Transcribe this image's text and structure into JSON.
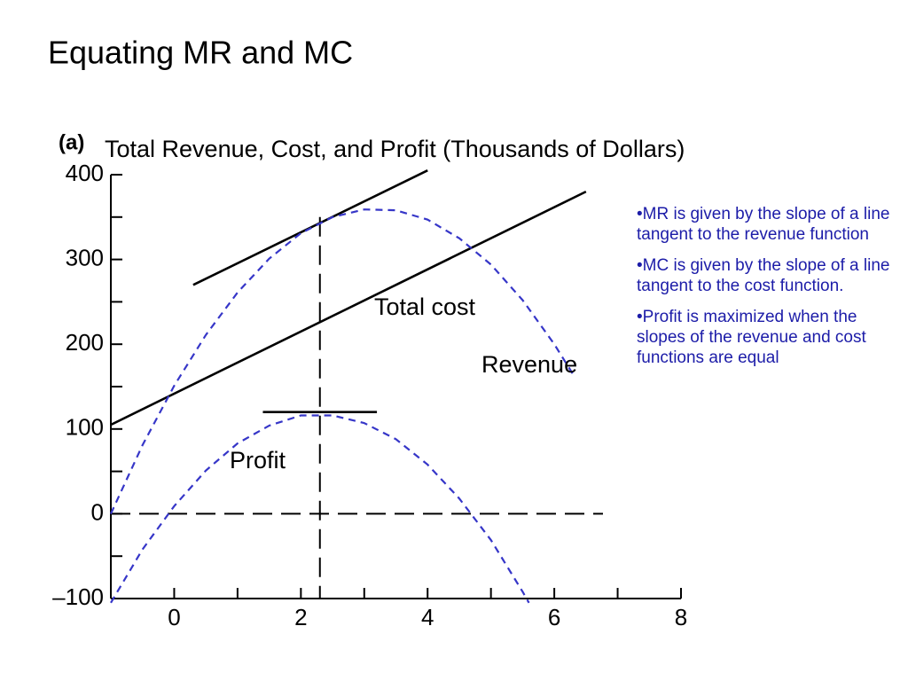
{
  "title": "Equating MR and MC",
  "bullets": [
    "•MR is given by the slope of a line tangent to the revenue function",
    "•MC is given by the slope of a line tangent to the cost function.",
    "•Profit is maximized when the slopes of the revenue and cost functions are equal"
  ],
  "chart_data": {
    "type": "line",
    "panel_label": "(a)",
    "title": "Total Revenue, Cost, and Profit (Thousands of Dollars)",
    "xlim": [
      -1,
      8
    ],
    "ylim": [
      -100,
      400
    ],
    "xticks": [
      0,
      2,
      4,
      6,
      8
    ],
    "yticks": [
      {
        "value": -100,
        "label": "–100"
      },
      0,
      100,
      200,
      300,
      400
    ],
    "vline": 2.3,
    "hline": 0,
    "series": [
      {
        "color": "#000000",
        "dash": false,
        "x": [
          0.3,
          4
        ],
        "values": [
          270,
          405
        ]
      },
      {
        "name": "Total cost",
        "color": "#000000",
        "dash": false,
        "x": [
          -1,
          6.5
        ],
        "values": [
          105,
          380
        ]
      },
      {
        "name": "Revenue",
        "color": "#3636c8",
        "dash": true,
        "x": [
          -1,
          -0.5,
          0,
          0.5,
          1,
          1.5,
          2,
          2.5,
          3,
          3.5,
          4,
          4.5,
          5,
          5.5,
          6,
          6.3
        ],
        "values": [
          0,
          81,
          151,
          211,
          261,
          301,
          331,
          350,
          359,
          358,
          347,
          325,
          294,
          252,
          200,
          164
        ]
      },
      {
        "name": "Profit",
        "color": "#3636c8",
        "dash": true,
        "x": [
          -1,
          -0.5,
          0,
          0.5,
          1,
          1.5,
          2,
          2.5,
          3,
          3.5,
          4,
          4.5,
          5,
          5.5,
          5.6
        ],
        "values": [
          -105,
          -42,
          9,
          51,
          83,
          104,
          116,
          116,
          107,
          88,
          58,
          18,
          -31,
          -92,
          -105
        ]
      },
      {
        "color": "#000000",
        "dash": false,
        "x": [
          1.4,
          3.2
        ],
        "values": [
          120,
          120
        ]
      }
    ]
  }
}
